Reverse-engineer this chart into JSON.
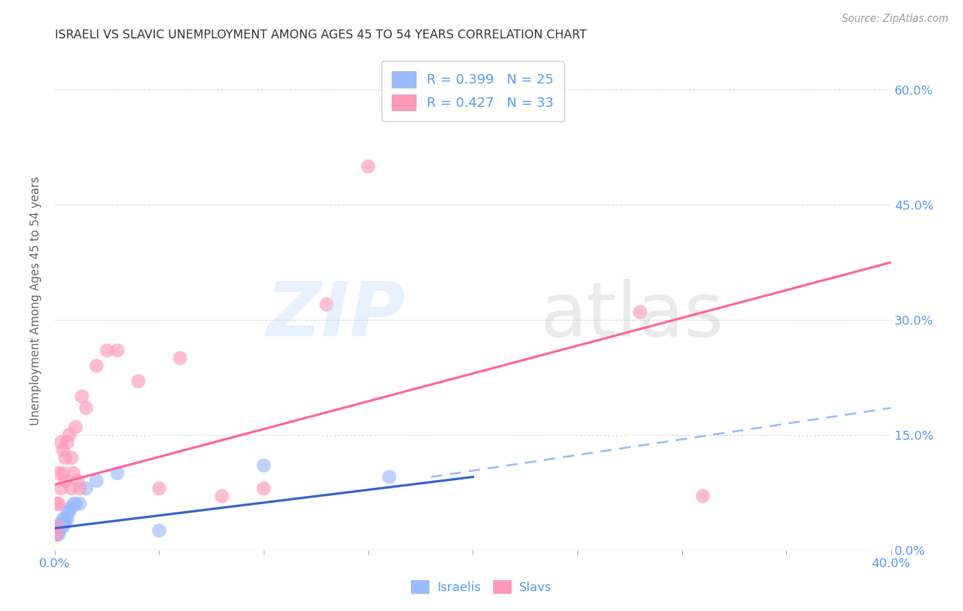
{
  "title": "ISRAELI VS SLAVIC UNEMPLOYMENT AMONG AGES 45 TO 54 YEARS CORRELATION CHART",
  "source": "Source: ZipAtlas.com",
  "ylabel": "Unemployment Among Ages 45 to 54 years",
  "xlim": [
    0.0,
    0.4
  ],
  "ylim": [
    0.0,
    0.65
  ],
  "xticks": [
    0.0,
    0.05,
    0.1,
    0.15,
    0.2,
    0.25,
    0.3,
    0.35,
    0.4
  ],
  "xtick_labels": [
    "0.0%",
    "",
    "",
    "",
    "",
    "",
    "",
    "",
    "40.0%"
  ],
  "yticks_right": [
    0.0,
    0.15,
    0.3,
    0.45,
    0.6
  ],
  "background_color": "#ffffff",
  "grid_color": "#cccccc",
  "title_color": "#333333",
  "axis_label_color": "#666666",
  "tick_color": "#5599ff",
  "watermark_zip": "ZIP",
  "watermark_atlas": "atlas",
  "israelis_x": [
    0.001,
    0.001,
    0.001,
    0.002,
    0.002,
    0.002,
    0.003,
    0.003,
    0.004,
    0.004,
    0.005,
    0.005,
    0.006,
    0.006,
    0.007,
    0.008,
    0.009,
    0.01,
    0.012,
    0.015,
    0.02,
    0.03,
    0.05,
    0.1,
    0.16
  ],
  "israelis_y": [
    0.02,
    0.025,
    0.03,
    0.02,
    0.025,
    0.03,
    0.03,
    0.035,
    0.03,
    0.04,
    0.035,
    0.04,
    0.04,
    0.05,
    0.05,
    0.055,
    0.06,
    0.06,
    0.06,
    0.08,
    0.09,
    0.1,
    0.025,
    0.11,
    0.095
  ],
  "israelis_color": "#99bbff",
  "slavs_x": [
    0.001,
    0.001,
    0.001,
    0.002,
    0.002,
    0.003,
    0.003,
    0.004,
    0.004,
    0.005,
    0.005,
    0.006,
    0.007,
    0.008,
    0.008,
    0.009,
    0.01,
    0.011,
    0.012,
    0.013,
    0.015,
    0.02,
    0.025,
    0.03,
    0.04,
    0.05,
    0.06,
    0.08,
    0.1,
    0.13,
    0.15,
    0.28,
    0.31
  ],
  "slavs_y": [
    0.02,
    0.03,
    0.06,
    0.06,
    0.1,
    0.08,
    0.14,
    0.1,
    0.13,
    0.09,
    0.12,
    0.14,
    0.15,
    0.12,
    0.08,
    0.1,
    0.16,
    0.09,
    0.08,
    0.2,
    0.185,
    0.24,
    0.26,
    0.26,
    0.22,
    0.08,
    0.25,
    0.07,
    0.08,
    0.32,
    0.5,
    0.31,
    0.07
  ],
  "slavs_color": "#ff99bb",
  "israeli_line_color": "#3366cc",
  "slav_line_color": "#ff6699",
  "dashed_line_color": "#99bbff",
  "israeli_line": {
    "x0": 0.0,
    "x1": 0.2,
    "y0": 0.028,
    "y1": 0.095
  },
  "slav_line": {
    "x0": 0.0,
    "x1": 0.4,
    "y0": 0.085,
    "y1": 0.375
  },
  "dashed_line": {
    "x0": 0.18,
    "x1": 0.4,
    "y0": 0.095,
    "y1": 0.185
  },
  "R_israelis": 0.399,
  "N_israelis": 25,
  "R_slavs": 0.427,
  "N_slavs": 33,
  "legend_label_israelis": "Israelis",
  "legend_label_slavs": "Slavs"
}
